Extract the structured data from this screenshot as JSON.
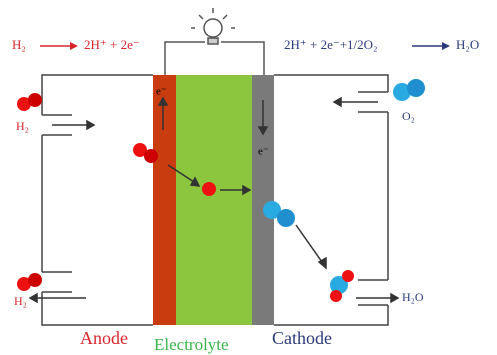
{
  "equations": {
    "anode_left": "H₂",
    "anode_right": "2H⁺ + 2e⁻",
    "cathode_left": "2H⁺ + 2e⁻+1/2O₂",
    "cathode_right": "H₂O"
  },
  "flows": {
    "h2_in": "H₂",
    "o2_in": "O₂",
    "h2_out": "H₂",
    "h2o_out": "H₂O"
  },
  "electrons": {
    "anode": "e⁻",
    "cathode": "e⁻"
  },
  "labels": {
    "anode": "Anode",
    "electrolyte": "Electrolyte",
    "cathode": "Cathode"
  }
}
